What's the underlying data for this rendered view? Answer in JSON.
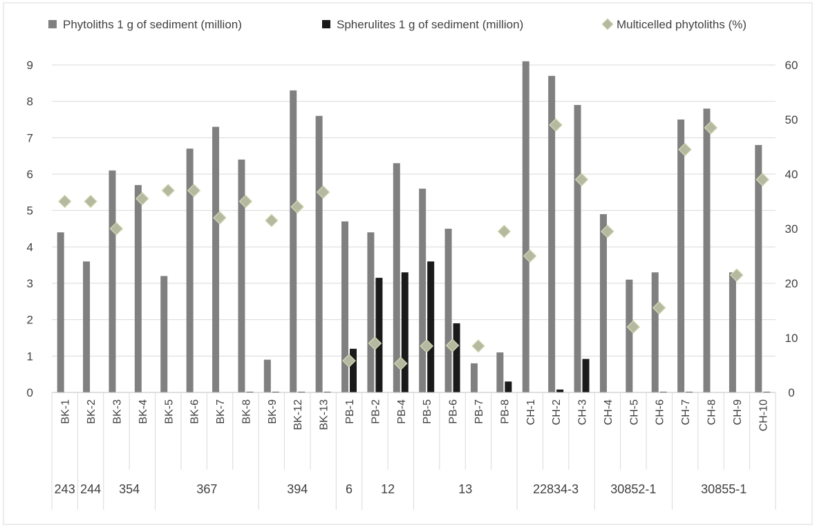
{
  "chart_data": {
    "type": "bar",
    "categories": [
      "BK-1",
      "BK-2",
      "BK-3",
      "BK-4",
      "BK-5",
      "BK-6",
      "BK-7",
      "BK-8",
      "BK-9",
      "BK-12",
      "BK-13",
      "PB-1",
      "PB-2",
      "PB-4",
      "PB-5",
      "PB-6",
      "PB-7",
      "PB-8",
      "CH-1",
      "CH-2",
      "CH-3",
      "CH-4",
      "CH-5",
      "CH-6",
      "CH-7",
      "CH-8",
      "CH-9",
      "CH-10"
    ],
    "groups": [
      {
        "label": "243",
        "count": 1
      },
      {
        "label": "244",
        "count": 1
      },
      {
        "label": "354",
        "count": 2
      },
      {
        "label": "367",
        "count": 4
      },
      {
        "label": "394",
        "count": 3
      },
      {
        "label": "6",
        "count": 1
      },
      {
        "label": "12",
        "count": 2
      },
      {
        "label": "13",
        "count": 4
      },
      {
        "label": "22834-3",
        "count": 3
      },
      {
        "label": "30852-1",
        "count": 3
      },
      {
        "label": "30855-1",
        "count": 4
      }
    ],
    "series": [
      {
        "name": "Phytoliths 1 g of  sediment (million)",
        "kind": "bar",
        "axis": "left",
        "color": "#808080",
        "values": [
          4.4,
          3.6,
          6.1,
          5.7,
          3.2,
          6.7,
          7.3,
          6.4,
          0.9,
          8.3,
          7.6,
          4.7,
          4.4,
          6.3,
          5.6,
          4.5,
          0.8,
          1.1,
          9.1,
          8.7,
          7.9,
          4.9,
          3.1,
          3.3,
          7.5,
          7.8,
          3.3,
          6.8
        ]
      },
      {
        "name": "Spherulites 1 g of  sediment (million)",
        "kind": "bar",
        "axis": "left",
        "color": "#1a1a1a",
        "values": [
          0,
          0,
          0,
          0,
          0,
          0,
          0,
          0.02,
          0.02,
          0.02,
          0.02,
          1.2,
          3.15,
          3.3,
          3.6,
          1.9,
          0,
          0.3,
          0,
          0.08,
          0.92,
          0,
          0,
          0.02,
          0.02,
          0,
          0,
          0.02
        ]
      },
      {
        "name": "Multicelled phytoliths (%)",
        "kind": "marker",
        "axis": "right",
        "color": "#b4b9a0",
        "values": [
          35,
          35,
          30,
          35.5,
          37,
          37,
          32,
          35,
          31.5,
          34,
          36.7,
          5.8,
          9,
          5.3,
          8.5,
          8.6,
          8.5,
          29.5,
          25,
          49,
          39,
          29.5,
          12,
          15.5,
          44.5,
          48.5,
          21.5,
          39
        ]
      }
    ],
    "y_left": {
      "min": 0,
      "max": 9,
      "ticks": [
        0,
        1,
        2,
        3,
        4,
        5,
        6,
        7,
        8,
        9
      ]
    },
    "y_right": {
      "min": 0,
      "max": 60,
      "ticks": [
        0,
        10,
        20,
        30,
        40,
        50,
        60
      ]
    },
    "legend_position": "top",
    "grid": true,
    "title": "",
    "xlabel": "",
    "ylabel": ""
  }
}
